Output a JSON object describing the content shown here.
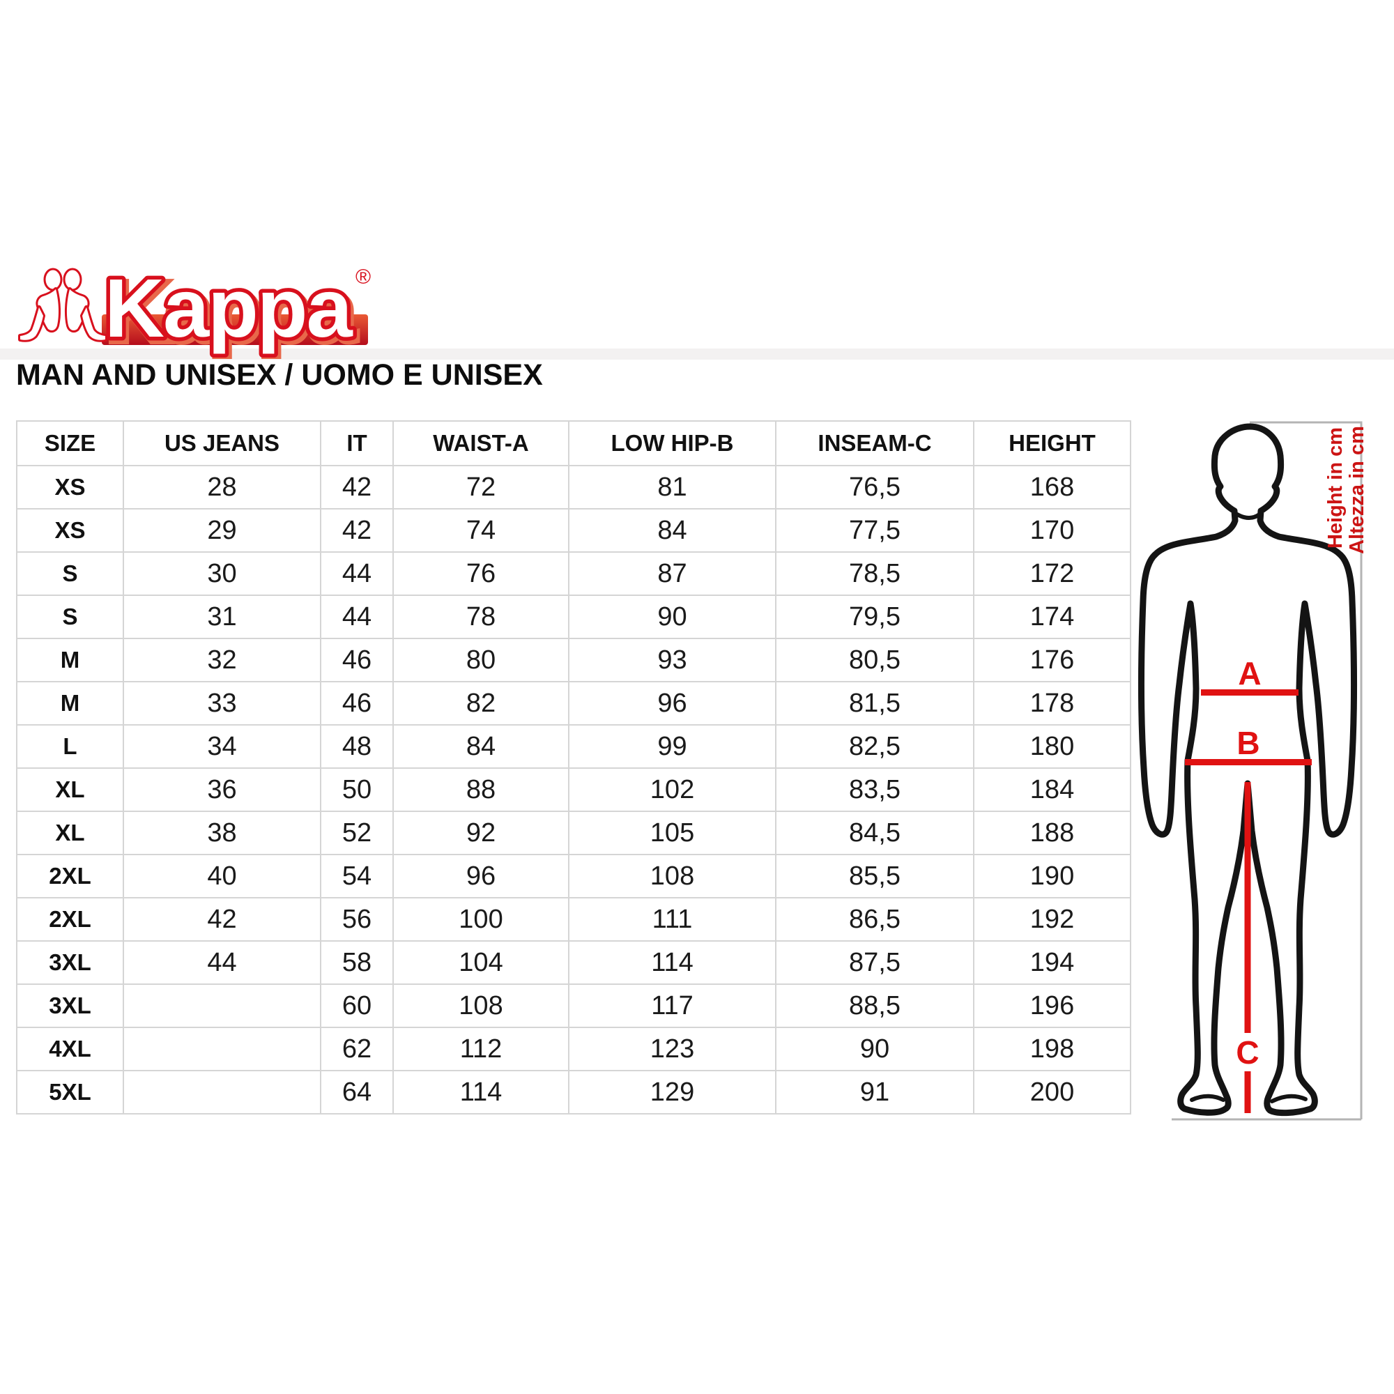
{
  "brand": {
    "name": "Kappa",
    "registered": "®"
  },
  "page_title": "MAN AND UNISEX / UOMO E UNISEX",
  "size_table": {
    "columns": [
      "SIZE",
      "US JEANS",
      "IT",
      "WAIST-A",
      "LOW HIP-B",
      "INSEAM-C",
      "HEIGHT"
    ],
    "rows": [
      [
        "XS",
        "28",
        "42",
        "72",
        "81",
        "76,5",
        "168"
      ],
      [
        "XS",
        "29",
        "42",
        "74",
        "84",
        "77,5",
        "170"
      ],
      [
        "S",
        "30",
        "44",
        "76",
        "87",
        "78,5",
        "172"
      ],
      [
        "S",
        "31",
        "44",
        "78",
        "90",
        "79,5",
        "174"
      ],
      [
        "M",
        "32",
        "46",
        "80",
        "93",
        "80,5",
        "176"
      ],
      [
        "M",
        "33",
        "46",
        "82",
        "96",
        "81,5",
        "178"
      ],
      [
        "L",
        "34",
        "48",
        "84",
        "99",
        "82,5",
        "180"
      ],
      [
        "XL",
        "36",
        "50",
        "88",
        "102",
        "83,5",
        "184"
      ],
      [
        "XL",
        "38",
        "52",
        "92",
        "105",
        "84,5",
        "188"
      ],
      [
        "2XL",
        "40",
        "54",
        "96",
        "108",
        "85,5",
        "190"
      ],
      [
        "2XL",
        "42",
        "56",
        "100",
        "111",
        "86,5",
        "192"
      ],
      [
        "3XL",
        "44",
        "58",
        "104",
        "114",
        "87,5",
        "194"
      ],
      [
        "3XL",
        "",
        "60",
        "108",
        "117",
        "88,5",
        "196"
      ],
      [
        "4XL",
        "",
        "62",
        "112",
        "123",
        "90",
        "198"
      ],
      [
        "5XL",
        "",
        "64",
        "114",
        "129",
        "91",
        "200"
      ]
    ]
  },
  "measurement_figure": {
    "label_a": "A",
    "label_b": "B",
    "label_c": "C",
    "note_en": "Height in cm",
    "note_it": "Altezza in cm"
  },
  "colors": {
    "accent_red": "#e01212",
    "logo_red": "#d8101d",
    "grid_gray": "#d5d5d5",
    "bracket_gray": "#b4b4b4"
  }
}
